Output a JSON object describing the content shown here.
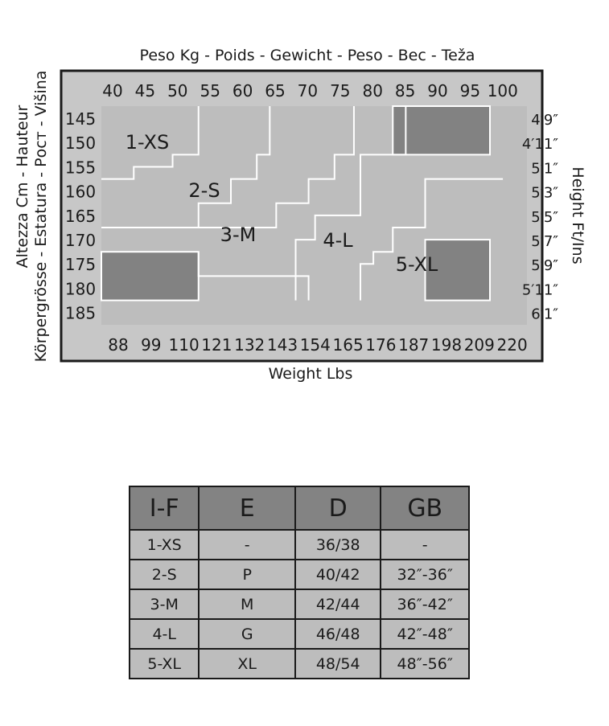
{
  "chart_data": {
    "type": "heatmap",
    "top_axis_title": "Peso Kg - Poids - Gewicht - Peso - Bec - Teža",
    "bottom_axis_title": "Weight Lbs",
    "left_axis_title_line1": "Altezza Cm - Hauteur",
    "left_axis_title_line2": "Körpergrösse - Estatura - Рост - Višina",
    "right_axis_title": "Height Ft/Ins",
    "kg_ticks": [
      "40",
      "45",
      "50",
      "55",
      "60",
      "65",
      "70",
      "75",
      "80",
      "85",
      "90",
      "95",
      "100"
    ],
    "lbs_ticks": [
      "88",
      "99",
      "110",
      "121",
      "132",
      "143",
      "154",
      "165",
      "176",
      "187",
      "198",
      "209",
      "220"
    ],
    "cm_ticks": [
      "145",
      "150",
      "155",
      "160",
      "165",
      "170",
      "175",
      "180",
      "185"
    ],
    "ftin_ticks": [
      "4′9″",
      "4′11″",
      "5′1″",
      "5′3″",
      "5′5″",
      "5′7″",
      "5′9″",
      "5′11″",
      "6′1″"
    ],
    "sizes": [
      {
        "label": "1-XS",
        "kg": [
          40,
          55
        ],
        "cm": [
          145,
          160
        ]
      },
      {
        "label": "2-S",
        "kg": [
          50,
          70
        ],
        "cm": [
          155,
          170
        ]
      },
      {
        "label": "3-M",
        "kg": [
          55,
          80
        ],
        "cm": [
          165,
          180
        ]
      },
      {
        "label": "4-L",
        "kg": [
          70,
          90
        ],
        "cm": [
          160,
          185
        ]
      },
      {
        "label": "5-XL",
        "kg": [
          85,
          100
        ],
        "cm": [
          155,
          185
        ]
      }
    ],
    "out_of_range_areas": [
      {
        "kg": [
          85,
          100
        ],
        "cm": [
          145,
          155
        ]
      },
      {
        "kg": [
          40,
          55
        ],
        "cm": [
          175,
          185
        ]
      },
      {
        "kg": [
          90,
          100
        ],
        "cm": [
          172.5,
          185
        ]
      }
    ],
    "colors": {
      "frame": "#1a1a1a",
      "plot_bg": "#bdbdbd",
      "outer_bg": "#c7c7c7",
      "dark_area": "#828282",
      "boundary": "#ffffff"
    }
  },
  "size_table": {
    "headers": [
      "I-F",
      "E",
      "D",
      "GB"
    ],
    "rows": [
      [
        "1-XS",
        "-",
        "36/38",
        "-"
      ],
      [
        "2-S",
        "P",
        "40/42",
        "32″-36″"
      ],
      [
        "3-M",
        "M",
        "42/44",
        "36″-42″"
      ],
      [
        "4-L",
        "G",
        "46/48",
        "42″-48″"
      ],
      [
        "5-XL",
        "XL",
        "48/54",
        "48″-56″"
      ]
    ]
  }
}
